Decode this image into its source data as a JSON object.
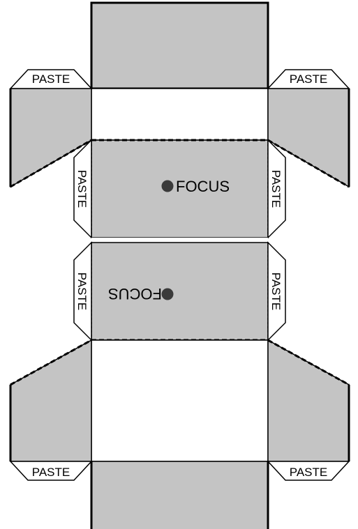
{
  "labels": {
    "paste": "PASTE",
    "focus": "FOCUS"
  },
  "colors": {
    "panel_fill": "#c4c4c4",
    "dot": "#3a3a3a",
    "line": "#000000"
  }
}
